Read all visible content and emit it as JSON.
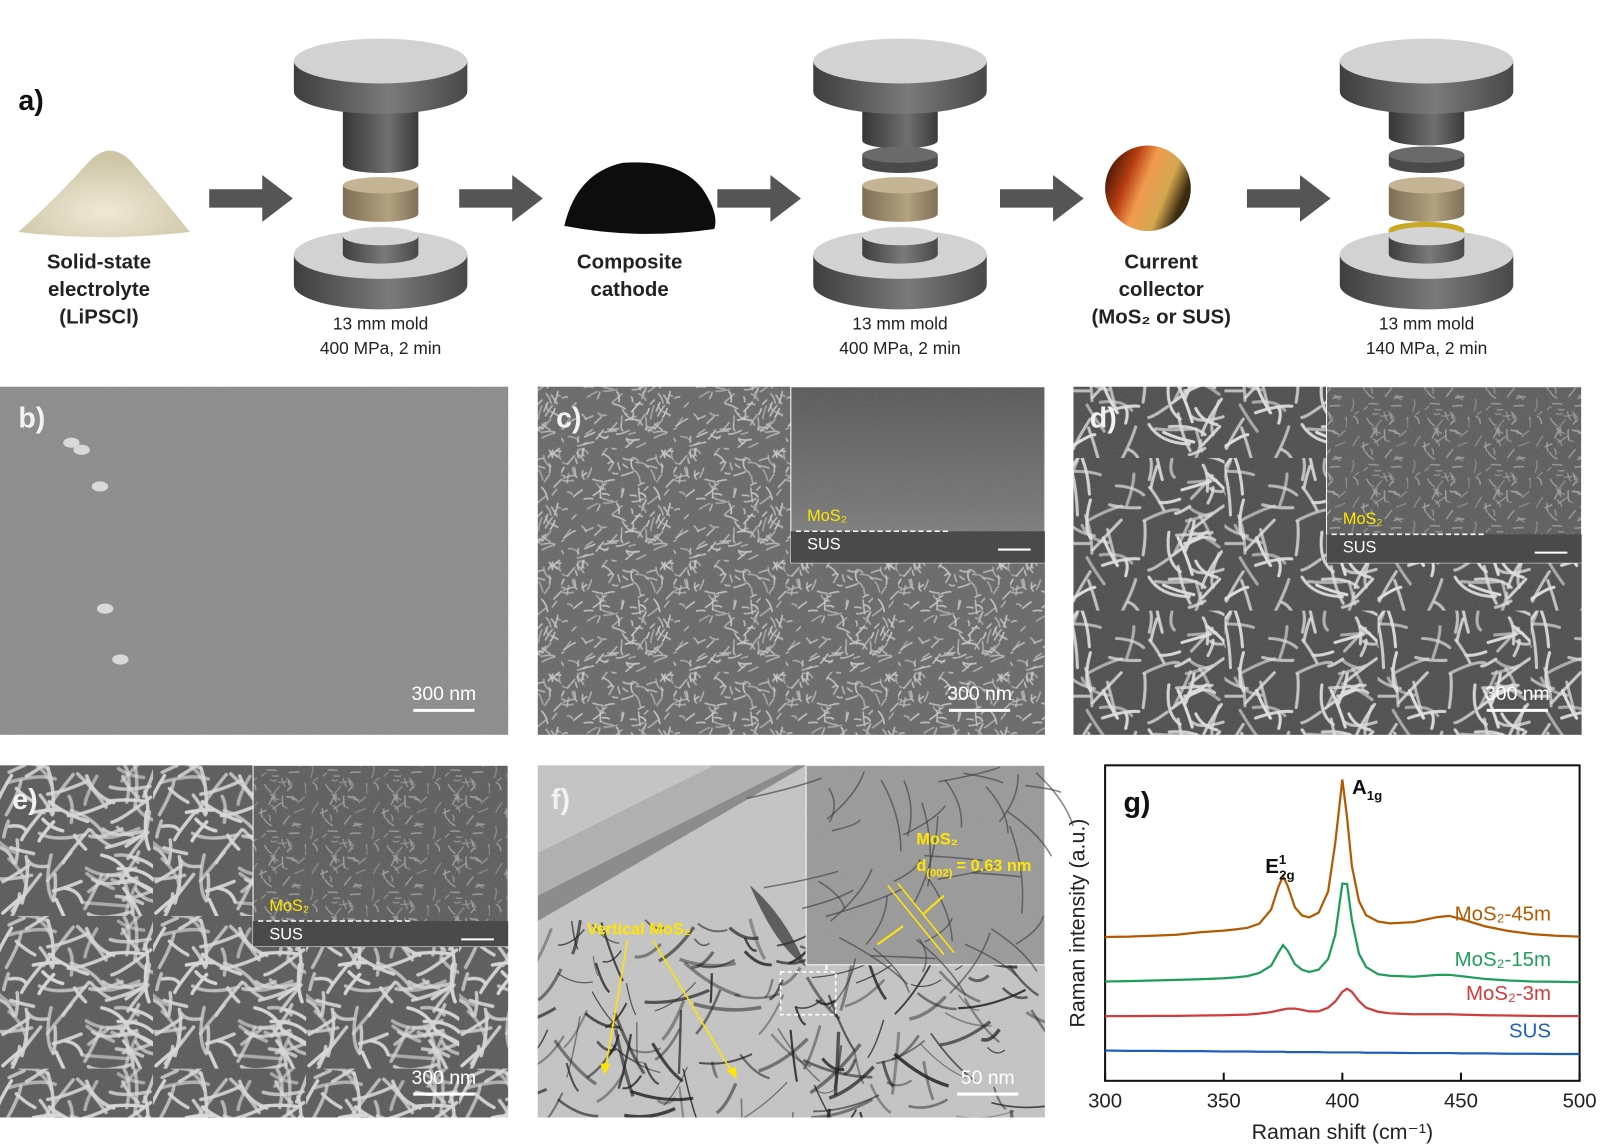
{
  "panel_a": {
    "label": "a)",
    "materials": [
      [
        "Solid-state",
        "electrolyte",
        "(LiPSCl)"
      ],
      [
        "Composite",
        "cathode"
      ],
      [
        "Current",
        "collector",
        "(MoS₂ or SUS)"
      ]
    ],
    "molds": [
      [
        "13 mm mold",
        "400 MPa, 2 min"
      ],
      [
        "13 mm mold",
        "400 MPa, 2 min"
      ],
      [
        "13 mm mold",
        "140 MPa, 2 min"
      ]
    ]
  },
  "panels": [
    {
      "label": "b)",
      "scale_bar": "300 nm"
    },
    {
      "label": "c)",
      "scale_bar": "300 nm",
      "inset": {
        "top": "MoS₂",
        "bottom": "SUS"
      }
    },
    {
      "label": "d)",
      "scale_bar": "300 nm",
      "inset": {
        "top": "MoS₂",
        "bottom": "SUS"
      }
    },
    {
      "label": "e)",
      "scale_bar": "300 nm",
      "inset": {
        "top": "MoS₂",
        "bottom": "SUS"
      }
    },
    {
      "label": "f)",
      "scale_bar": "50 nm",
      "annotation": "Vertical MoS₂",
      "inset": {
        "title": "MoS₂",
        "spacing": {
          "text": "d",
          "sub": "(002)",
          "tail": "= 0.63 nm"
        }
      }
    }
  ],
  "chart_data": {
    "type": "line",
    "panel_label": "g)",
    "x_label": "Raman shift (cm⁻¹)",
    "y_label": "Raman intensity (a.u.)",
    "x": [
      300,
      310,
      320,
      330,
      340,
      350,
      355,
      360,
      365,
      370,
      373,
      375,
      377,
      380,
      383,
      386,
      390,
      394,
      397,
      400,
      402,
      404,
      407,
      410,
      415,
      420,
      430,
      440,
      445,
      450,
      460,
      470,
      480,
      490,
      500
    ],
    "xlim": [
      300,
      500
    ],
    "xticks": [
      300,
      350,
      400,
      450,
      500
    ],
    "ylim": [
      0,
      100
    ],
    "series": [
      {
        "name": "MoS₂-45m",
        "color": "#b35a00",
        "values": [
          45.6,
          45.7,
          46,
          46.3,
          47.1,
          47.6,
          48,
          48.5,
          49.8,
          54.3,
          61.4,
          64.9,
          61.7,
          55,
          52.4,
          51.8,
          53.3,
          60,
          75.3,
          95.5,
          83.4,
          68.2,
          57,
          52.5,
          50.5,
          49.9,
          50.3,
          51.9,
          52.3,
          51.3,
          49,
          47.5,
          46.5,
          46,
          45.7
        ]
      },
      {
        "name": "MoS₂-15m",
        "color": "#1f9e5a",
        "values": [
          31.5,
          31.6,
          31.8,
          32,
          32.2,
          32.5,
          32.8,
          33.2,
          34.2,
          36.5,
          40.6,
          43,
          41.2,
          37,
          35.2,
          34.5,
          35.2,
          38.6,
          46.3,
          62.5,
          62.4,
          51,
          40.3,
          36.1,
          33.8,
          33.3,
          33,
          33.6,
          33.6,
          33.2,
          32.3,
          31.8,
          31.5,
          31.4,
          31.3
        ]
      },
      {
        "name": "MoS₂-3m",
        "color": "#d13b3b",
        "values": [
          20.5,
          20.5,
          20.6,
          20.6,
          20.7,
          20.8,
          20.9,
          21,
          21.3,
          21.8,
          22.3,
          22.6,
          22.9,
          22.9,
          22.5,
          22,
          22,
          23.2,
          25.1,
          28.2,
          29.2,
          28.2,
          25.3,
          23.2,
          21.9,
          21.4,
          21.1,
          21.1,
          21.1,
          21,
          20.8,
          20.7,
          20.6,
          20.5,
          20.5
        ]
      },
      {
        "name": "SUS",
        "color": "#1e5fc0",
        "values": [
          9.6,
          9.5,
          9.5,
          9.4,
          9.4,
          9.3,
          9.3,
          9.3,
          9.2,
          9.2,
          9.2,
          9.2,
          9.1,
          9.1,
          9.1,
          9.1,
          9.1,
          9,
          9,
          9,
          9,
          9,
          9,
          8.9,
          8.9,
          8.9,
          8.8,
          8.8,
          8.8,
          8.7,
          8.7,
          8.6,
          8.6,
          8.5,
          8.5
        ]
      }
    ],
    "annotations": [
      {
        "text": "E",
        "sup": "1",
        "sub": "2g"
      },
      {
        "text": "A",
        "sub": "1g"
      }
    ]
  }
}
